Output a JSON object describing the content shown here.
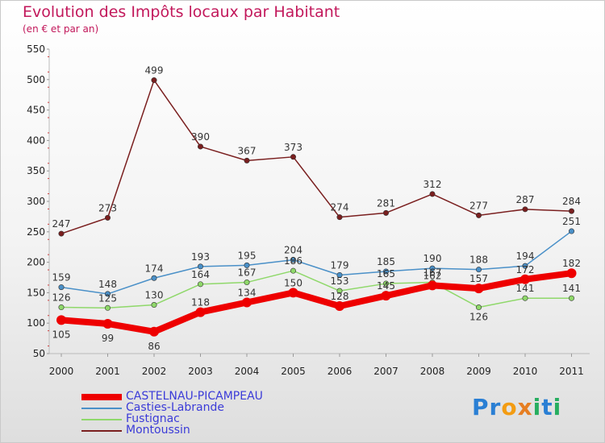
{
  "header": {
    "title": "Evolution des Impôts locaux par Habitant",
    "subtitle": "(en € et par an)"
  },
  "chart_data": {
    "type": "line",
    "title": "Evolution des Impôts locaux par Habitant",
    "subtitle": "(en € et par an)",
    "xlabel": "",
    "ylabel": "",
    "x": [
      "2000",
      "2001",
      "2002",
      "2003",
      "2004",
      "2005",
      "2006",
      "2007",
      "2008",
      "2009",
      "2010",
      "2011"
    ],
    "ylim": [
      50,
      550
    ],
    "yticks": [
      50,
      100,
      150,
      200,
      250,
      300,
      350,
      400,
      450,
      500,
      550
    ],
    "grid": false,
    "legend_position": "bottom-left",
    "series": [
      {
        "name": "CASTELNAU-PICAMPEAU",
        "color": "#ee0000",
        "values": [
          105,
          99,
          86,
          118,
          134,
          150,
          128,
          145,
          162,
          157,
          172,
          182
        ],
        "labels": [
          "105",
          "99",
          "86",
          "118",
          "134",
          "150",
          "128",
          "145",
          "162",
          "157",
          "172",
          "182"
        ]
      },
      {
        "name": "Casties-Labrande",
        "color": "#4a90c8",
        "values": [
          159,
          148,
          174,
          193,
          195,
          204,
          179,
          185,
          190,
          188,
          194,
          251
        ],
        "labels": [
          "159",
          "148",
          "174",
          "193",
          "195",
          "204",
          "179",
          "185",
          "190",
          "188",
          "194",
          "251"
        ]
      },
      {
        "name": "Fustignac",
        "color": "#8fd86a",
        "values": [
          126,
          125,
          130,
          164,
          167,
          186,
          153,
          165,
          167,
          126,
          141,
          141
        ],
        "labels": [
          "126",
          "125",
          "130",
          "164",
          "167",
          "186",
          "153",
          "165",
          "167",
          "126",
          "141",
          "141"
        ]
      },
      {
        "name": "Montoussin",
        "color": "#7a1f1f",
        "values": [
          247,
          273,
          499,
          390,
          367,
          373,
          274,
          281,
          312,
          277,
          287,
          284
        ],
        "labels": [
          "247",
          "273",
          "499",
          "390",
          "367",
          "373",
          "274",
          "281",
          "312",
          "277",
          "287",
          "284"
        ]
      }
    ]
  },
  "legend": {
    "items": [
      {
        "label": "CASTELNAU-PICAMPEAU",
        "color": "#ee0000",
        "thickness": 8
      },
      {
        "label": "Casties-Labrande",
        "color": "#4a90c8",
        "thickness": 2
      },
      {
        "label": "Fustignac",
        "color": "#8fd86a",
        "thickness": 2
      },
      {
        "label": "Montoussin",
        "color": "#7a1f1f",
        "thickness": 2
      }
    ]
  },
  "logo": {
    "letters": [
      {
        "ch": "P",
        "color": "#2a7fd4"
      },
      {
        "ch": "r",
        "color": "#2a7fd4"
      },
      {
        "ch": "o",
        "color": "#f39c12"
      },
      {
        "ch": "x",
        "color": "#e67e22"
      },
      {
        "ch": "i",
        "color": "#27ae60"
      },
      {
        "ch": "t",
        "color": "#2a7fd4"
      },
      {
        "ch": "i",
        "color": "#27ae60"
      }
    ]
  }
}
